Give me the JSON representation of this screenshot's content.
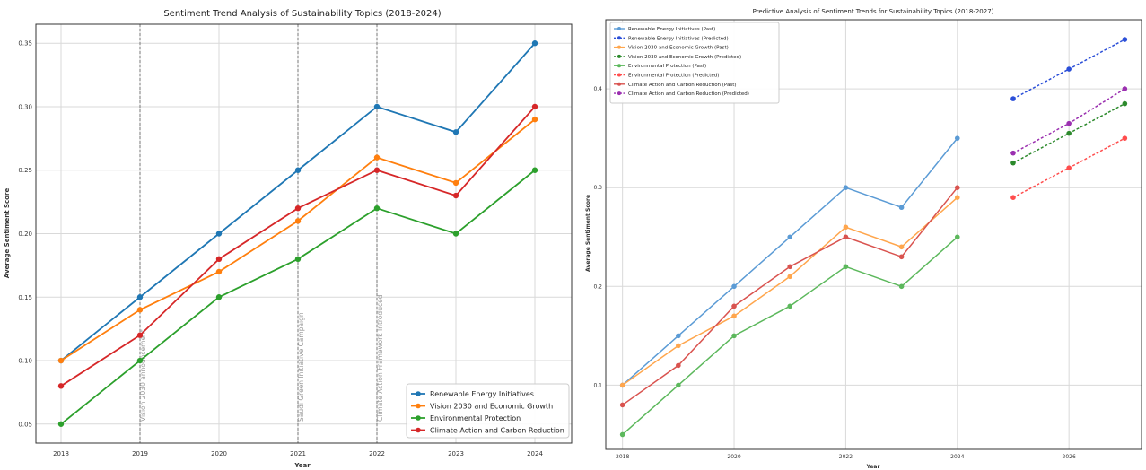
{
  "chart_data": [
    {
      "type": "line",
      "title": "Sentiment Trend Analysis of Sustainability Topics (2018-2024)",
      "xlabel": "Year",
      "ylabel": "Average Sentiment Score",
      "x": [
        2018,
        2019,
        2020,
        2021,
        2022,
        2023,
        2024
      ],
      "x_ticks": [
        "2018",
        "2019",
        "2020",
        "2021",
        "2022",
        "2023",
        "2024"
      ],
      "ylim": [
        0.035,
        0.365
      ],
      "y_ticks": [
        {
          "v": 0.05,
          "label": "0.05"
        },
        {
          "v": 0.1,
          "label": "0.10"
        },
        {
          "v": 0.15,
          "label": "0.15"
        },
        {
          "v": 0.2,
          "label": "0.20"
        },
        {
          "v": 0.25,
          "label": "0.25"
        },
        {
          "v": 0.3,
          "label": "0.30"
        },
        {
          "v": 0.35,
          "label": "0.35"
        }
      ],
      "grid": true,
      "legend_position": "bottom-right",
      "series": [
        {
          "name": "Renewable Energy Initiatives",
          "color": "#1f77b4",
          "values": [
            0.1,
            0.15,
            0.2,
            0.25,
            0.3,
            0.28,
            0.35
          ]
        },
        {
          "name": "Vision 2030 and Economic Growth",
          "color": "#ff7f0e",
          "values": [
            0.1,
            0.14,
            0.17,
            0.21,
            0.26,
            0.24,
            0.29
          ]
        },
        {
          "name": "Environmental Protection",
          "color": "#2ca02c",
          "values": [
            0.05,
            0.1,
            0.15,
            0.18,
            0.22,
            0.2,
            0.25
          ]
        },
        {
          "name": "Climate Action and Carbon Reduction",
          "color": "#d62728",
          "values": [
            0.08,
            0.12,
            0.18,
            0.22,
            0.25,
            0.23,
            0.3
          ]
        }
      ],
      "annotations": [
        {
          "x": 2019,
          "text": "Vision 2030 announcement"
        },
        {
          "x": 2021,
          "text": "Saudi Green Initiative Campaign"
        },
        {
          "x": 2022,
          "text": "Climate Action Framework Introduced"
        }
      ]
    },
    {
      "type": "line",
      "title": "Predictive Analysis of Sentiment Trends for Sustainability Topics (2018-2027)",
      "xlabel": "Year",
      "ylabel": "Average Sentiment Score",
      "xlim": [
        2017.7,
        2027.3
      ],
      "x_ticks": [
        "2018",
        "2020",
        "2022",
        "2024",
        "2026"
      ],
      "ylim": [
        0.035,
        0.47
      ],
      "y_ticks": [
        {
          "v": 0.1,
          "label": "0.1"
        },
        {
          "v": 0.2,
          "label": "0.2"
        },
        {
          "v": 0.3,
          "label": "0.3"
        },
        {
          "v": 0.4,
          "label": "0.4"
        }
      ],
      "grid": true,
      "legend_position": "top-left",
      "series": [
        {
          "name": "Renewable Energy Initiatives (Past)",
          "color": "#5b9bd5",
          "x": [
            2018,
            2019,
            2020,
            2021,
            2022,
            2023,
            2024
          ],
          "values": [
            0.1,
            0.15,
            0.2,
            0.25,
            0.3,
            0.28,
            0.35
          ]
        },
        {
          "name": "Renewable Energy Initiatives (Predicted)",
          "color": "#2b4fd8",
          "dashed": true,
          "x": [
            2025,
            2026,
            2027
          ],
          "values": [
            0.39,
            0.42,
            0.45
          ]
        },
        {
          "name": "Vision 2030 and Economic Growth (Past)",
          "color": "#ffa64d",
          "x": [
            2018,
            2019,
            2020,
            2021,
            2022,
            2023,
            2024
          ],
          "values": [
            0.1,
            0.14,
            0.17,
            0.21,
            0.26,
            0.24,
            0.29
          ]
        },
        {
          "name": "Vision 2030 and Economic Growth (Predicted)",
          "color": "#2c8a2c",
          "dashed": true,
          "x": [
            2025,
            2026,
            2027
          ],
          "values": [
            0.325,
            0.355,
            0.385
          ]
        },
        {
          "name": "Environmental Protection (Past)",
          "color": "#5cb85c",
          "x": [
            2018,
            2019,
            2020,
            2021,
            2022,
            2023,
            2024
          ],
          "values": [
            0.05,
            0.1,
            0.15,
            0.18,
            0.22,
            0.2,
            0.25
          ]
        },
        {
          "name": "Environmental Protection (Predicted)",
          "color": "#ff4d4d",
          "dashed": true,
          "x": [
            2025,
            2026,
            2027
          ],
          "values": [
            0.29,
            0.32,
            0.35
          ]
        },
        {
          "name": "Climate Action and Carbon Reduction (Past)",
          "color": "#d9534f",
          "x": [
            2018,
            2019,
            2020,
            2021,
            2022,
            2023,
            2024
          ],
          "values": [
            0.08,
            0.12,
            0.18,
            0.22,
            0.25,
            0.23,
            0.3
          ]
        },
        {
          "name": "Climate Action and Carbon Reduction (Predicted)",
          "color": "#9b30b0",
          "dashed": true,
          "x": [
            2025,
            2026,
            2027
          ],
          "values": [
            0.335,
            0.365,
            0.4
          ]
        }
      ]
    }
  ]
}
